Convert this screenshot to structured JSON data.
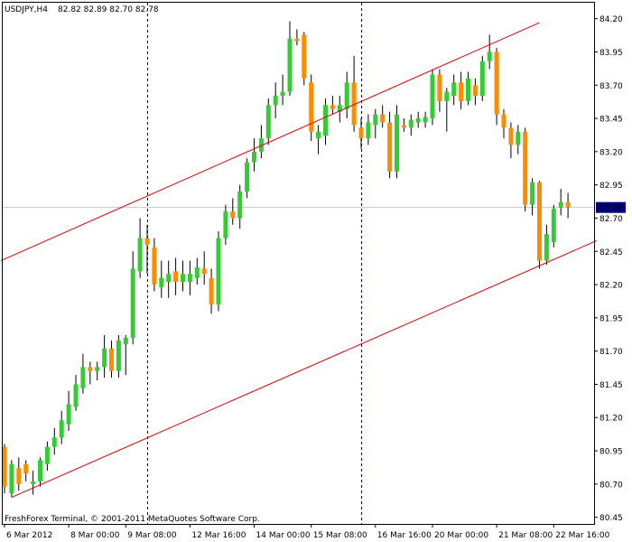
{
  "header": {
    "symbol": "USDJPY,H4",
    "ohlc": "82.82 82.89 82.70 82.78"
  },
  "footer": {
    "copyright": "FreshForex Terminal, © 2001-2011 MetaQuotes Software Corp."
  },
  "colors": {
    "bull": "#32cd32",
    "bear": "#ff8c00",
    "wick": "#000000",
    "channel": "#e00000",
    "separator": "#000080",
    "price_badge": "#000080"
  },
  "chart_data": {
    "type": "candlestick",
    "title": "",
    "xlabel": "",
    "ylabel": "",
    "ylim": [
      80.4,
      84.32
    ],
    "y_ticks": [
      "84.20",
      "83.95",
      "83.70",
      "83.45",
      "83.20",
      "82.95",
      "82.70",
      "82.45",
      "82.20",
      "81.95",
      "81.70",
      "81.45",
      "81.20",
      "80.95",
      "80.70",
      "80.45"
    ],
    "x_ticks": [
      {
        "label": "6 Mar 2012",
        "bar": 0
      },
      {
        "label": "8 Mar 00:00",
        "bar": 9
      },
      {
        "label": "9 Mar 08:00",
        "bar": 17
      },
      {
        "label": "12 Mar 16:00",
        "bar": 26
      },
      {
        "label": "14 Mar 00:00",
        "bar": 35
      },
      {
        "label": "15 Mar 08:00",
        "bar": 43
      },
      {
        "label": "16 Mar 16:00",
        "bar": 52
      },
      {
        "label": "20 Mar 00:00",
        "bar": 60
      },
      {
        "label": "21 Mar 08:00",
        "bar": 69
      },
      {
        "label": "22 Mar 16:00",
        "bar": 77
      }
    ],
    "current_price": "82.78",
    "period_separators": [
      20,
      50
    ],
    "channel_lines": [
      {
        "bar1": -0.5,
        "price1": 82.38,
        "bar2": 75,
        "price2": 84.17
      },
      {
        "bar1": 1,
        "price1": 80.6,
        "bar2": 83,
        "price2": 82.53
      }
    ],
    "candles": [
      {
        "o": 80.98,
        "h": 81.0,
        "l": 80.63,
        "c": 80.68
      },
      {
        "o": 80.63,
        "h": 80.88,
        "l": 80.6,
        "c": 80.85
      },
      {
        "o": 80.82,
        "h": 80.9,
        "l": 80.65,
        "c": 80.7
      },
      {
        "o": 80.85,
        "h": 80.88,
        "l": 80.72,
        "c": 80.78
      },
      {
        "o": 80.7,
        "h": 80.8,
        "l": 80.62,
        "c": 80.72
      },
      {
        "o": 80.72,
        "h": 80.9,
        "l": 80.68,
        "c": 80.88
      },
      {
        "o": 80.85,
        "h": 81.02,
        "l": 80.8,
        "c": 80.98
      },
      {
        "o": 80.98,
        "h": 81.12,
        "l": 80.92,
        "c": 81.05
      },
      {
        "o": 81.05,
        "h": 81.25,
        "l": 81.0,
        "c": 81.18
      },
      {
        "o": 81.15,
        "h": 81.4,
        "l": 81.1,
        "c": 81.3
      },
      {
        "o": 81.28,
        "h": 81.52,
        "l": 81.25,
        "c": 81.45
      },
      {
        "o": 81.42,
        "h": 81.68,
        "l": 81.38,
        "c": 81.58
      },
      {
        "o": 81.58,
        "h": 81.62,
        "l": 81.45,
        "c": 81.55
      },
      {
        "o": 81.55,
        "h": 81.62,
        "l": 81.48,
        "c": 81.58
      },
      {
        "o": 81.58,
        "h": 81.82,
        "l": 81.5,
        "c": 81.72
      },
      {
        "o": 81.72,
        "h": 81.78,
        "l": 81.5,
        "c": 81.55
      },
      {
        "o": 81.55,
        "h": 81.82,
        "l": 81.5,
        "c": 81.78
      },
      {
        "o": 81.75,
        "h": 81.82,
        "l": 81.52,
        "c": 81.8
      },
      {
        "o": 81.8,
        "h": 82.45,
        "l": 81.75,
        "c": 82.32
      },
      {
        "o": 82.3,
        "h": 82.7,
        "l": 82.25,
        "c": 82.55
      },
      {
        "o": 82.55,
        "h": 82.65,
        "l": 82.28,
        "c": 82.5
      },
      {
        "o": 82.48,
        "h": 82.55,
        "l": 82.15,
        "c": 82.2
      },
      {
        "o": 82.18,
        "h": 82.38,
        "l": 82.1,
        "c": 82.25
      },
      {
        "o": 82.22,
        "h": 82.38,
        "l": 82.1,
        "c": 82.28
      },
      {
        "o": 82.3,
        "h": 82.4,
        "l": 82.12,
        "c": 82.22
      },
      {
        "o": 82.22,
        "h": 82.38,
        "l": 82.15,
        "c": 82.28
      },
      {
        "o": 82.22,
        "h": 82.38,
        "l": 82.12,
        "c": 82.28
      },
      {
        "o": 82.25,
        "h": 82.4,
        "l": 82.2,
        "c": 82.33
      },
      {
        "o": 82.32,
        "h": 82.45,
        "l": 82.2,
        "c": 82.28
      },
      {
        "o": 82.25,
        "h": 82.32,
        "l": 81.98,
        "c": 82.05
      },
      {
        "o": 82.05,
        "h": 82.6,
        "l": 82.0,
        "c": 82.55
      },
      {
        "o": 82.55,
        "h": 82.8,
        "l": 82.5,
        "c": 82.75
      },
      {
        "o": 82.75,
        "h": 82.85,
        "l": 82.65,
        "c": 82.7
      },
      {
        "o": 82.7,
        "h": 82.95,
        "l": 82.62,
        "c": 82.9
      },
      {
        "o": 82.9,
        "h": 83.15,
        "l": 82.85,
        "c": 83.12
      },
      {
        "o": 83.12,
        "h": 83.3,
        "l": 83.05,
        "c": 83.2
      },
      {
        "o": 83.2,
        "h": 83.4,
        "l": 83.15,
        "c": 83.3
      },
      {
        "o": 83.3,
        "h": 83.6,
        "l": 83.25,
        "c": 83.55
      },
      {
        "o": 83.55,
        "h": 83.72,
        "l": 83.45,
        "c": 83.62
      },
      {
        "o": 83.62,
        "h": 83.78,
        "l": 83.55,
        "c": 83.65
      },
      {
        "o": 83.65,
        "h": 84.18,
        "l": 83.62,
        "c": 84.05
      },
      {
        "o": 84.05,
        "h": 84.12,
        "l": 84.0,
        "c": 84.03
      },
      {
        "o": 84.08,
        "h": 84.1,
        "l": 83.7,
        "c": 83.75
      },
      {
        "o": 83.72,
        "h": 83.78,
        "l": 83.28,
        "c": 83.35
      },
      {
        "o": 83.3,
        "h": 83.4,
        "l": 83.18,
        "c": 83.35
      },
      {
        "o": 83.32,
        "h": 83.6,
        "l": 83.25,
        "c": 83.55
      },
      {
        "o": 83.55,
        "h": 83.62,
        "l": 83.48,
        "c": 83.52
      },
      {
        "o": 83.5,
        "h": 83.62,
        "l": 83.42,
        "c": 83.55
      },
      {
        "o": 83.52,
        "h": 83.8,
        "l": 83.45,
        "c": 83.72
      },
      {
        "o": 83.72,
        "h": 83.92,
        "l": 83.35,
        "c": 83.4
      },
      {
        "o": 83.38,
        "h": 83.45,
        "l": 83.22,
        "c": 83.3
      },
      {
        "o": 83.3,
        "h": 83.48,
        "l": 83.25,
        "c": 83.42
      },
      {
        "o": 83.4,
        "h": 83.52,
        "l": 83.3,
        "c": 83.48
      },
      {
        "o": 83.48,
        "h": 83.55,
        "l": 83.38,
        "c": 83.42
      },
      {
        "o": 83.42,
        "h": 83.5,
        "l": 83.0,
        "c": 83.05
      },
      {
        "o": 83.05,
        "h": 83.55,
        "l": 83.0,
        "c": 83.48
      },
      {
        "o": 83.4,
        "h": 83.45,
        "l": 83.35,
        "c": 83.38
      },
      {
        "o": 83.38,
        "h": 83.48,
        "l": 83.32,
        "c": 83.44
      },
      {
        "o": 83.42,
        "h": 83.5,
        "l": 83.38,
        "c": 83.45
      },
      {
        "o": 83.42,
        "h": 83.5,
        "l": 83.38,
        "c": 83.46
      },
      {
        "o": 83.45,
        "h": 83.82,
        "l": 83.4,
        "c": 83.78
      },
      {
        "o": 83.78,
        "h": 83.82,
        "l": 83.5,
        "c": 83.58
      },
      {
        "o": 83.58,
        "h": 83.68,
        "l": 83.35,
        "c": 83.65
      },
      {
        "o": 83.62,
        "h": 83.78,
        "l": 83.55,
        "c": 83.72
      },
      {
        "o": 83.72,
        "h": 83.8,
        "l": 83.52,
        "c": 83.58
      },
      {
        "o": 83.58,
        "h": 83.8,
        "l": 83.55,
        "c": 83.75
      },
      {
        "o": 83.7,
        "h": 83.75,
        "l": 83.55,
        "c": 83.62
      },
      {
        "o": 83.62,
        "h": 83.92,
        "l": 83.58,
        "c": 83.88
      },
      {
        "o": 83.88,
        "h": 84.08,
        "l": 83.82,
        "c": 83.95
      },
      {
        "o": 83.95,
        "h": 83.98,
        "l": 83.4,
        "c": 83.48
      },
      {
        "o": 83.48,
        "h": 83.52,
        "l": 83.3,
        "c": 83.38
      },
      {
        "o": 83.38,
        "h": 83.42,
        "l": 83.15,
        "c": 83.25
      },
      {
        "o": 83.25,
        "h": 83.4,
        "l": 83.18,
        "c": 83.35
      },
      {
        "o": 83.35,
        "h": 83.38,
        "l": 82.75,
        "c": 82.8
      },
      {
        "o": 82.8,
        "h": 83.0,
        "l": 82.72,
        "c": 82.97
      },
      {
        "o": 82.97,
        "h": 82.98,
        "l": 82.32,
        "c": 82.38
      },
      {
        "o": 82.38,
        "h": 82.65,
        "l": 82.35,
        "c": 82.58
      },
      {
        "o": 82.52,
        "h": 82.8,
        "l": 82.48,
        "c": 82.77
      },
      {
        "o": 82.78,
        "h": 82.92,
        "l": 82.72,
        "c": 82.82
      },
      {
        "o": 82.82,
        "h": 82.89,
        "l": 82.7,
        "c": 82.78
      }
    ]
  }
}
